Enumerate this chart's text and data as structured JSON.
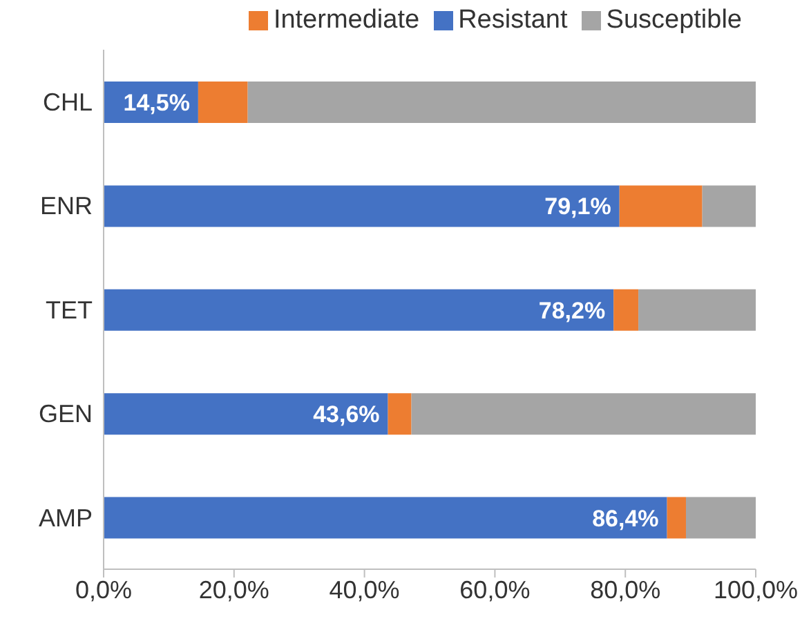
{
  "chart_data": {
    "type": "bar",
    "orientation": "horizontal",
    "stacked": true,
    "categories": [
      "CHL",
      "ENR",
      "TET",
      "GEN",
      "AMP"
    ],
    "series": [
      {
        "name": "Resistant",
        "color": "#4472c4",
        "values": [
          14.5,
          79.1,
          78.2,
          43.6,
          86.4
        ],
        "value_labels": [
          "14,5%",
          "79,1%",
          "78,2%",
          "43,6%",
          "86,4%"
        ]
      },
      {
        "name": "Intermediate",
        "color": "#ed7d31",
        "values": [
          7.6,
          12.7,
          3.8,
          3.6,
          2.9
        ]
      },
      {
        "name": "Susceptible",
        "color": "#a5a5a5",
        "values": [
          77.9,
          8.2,
          18.0,
          52.8,
          10.7
        ]
      }
    ],
    "xlim": [
      0,
      100
    ],
    "xticks": [
      {
        "value": 0,
        "label": "0,0%"
      },
      {
        "value": 20,
        "label": "20,0%"
      },
      {
        "value": 40,
        "label": "40,0%"
      },
      {
        "value": 60,
        "label": "60,0%"
      },
      {
        "value": 80,
        "label": "80,0%"
      },
      {
        "value": 100,
        "label": "100,0%"
      }
    ],
    "grid": false,
    "legend": "top"
  }
}
